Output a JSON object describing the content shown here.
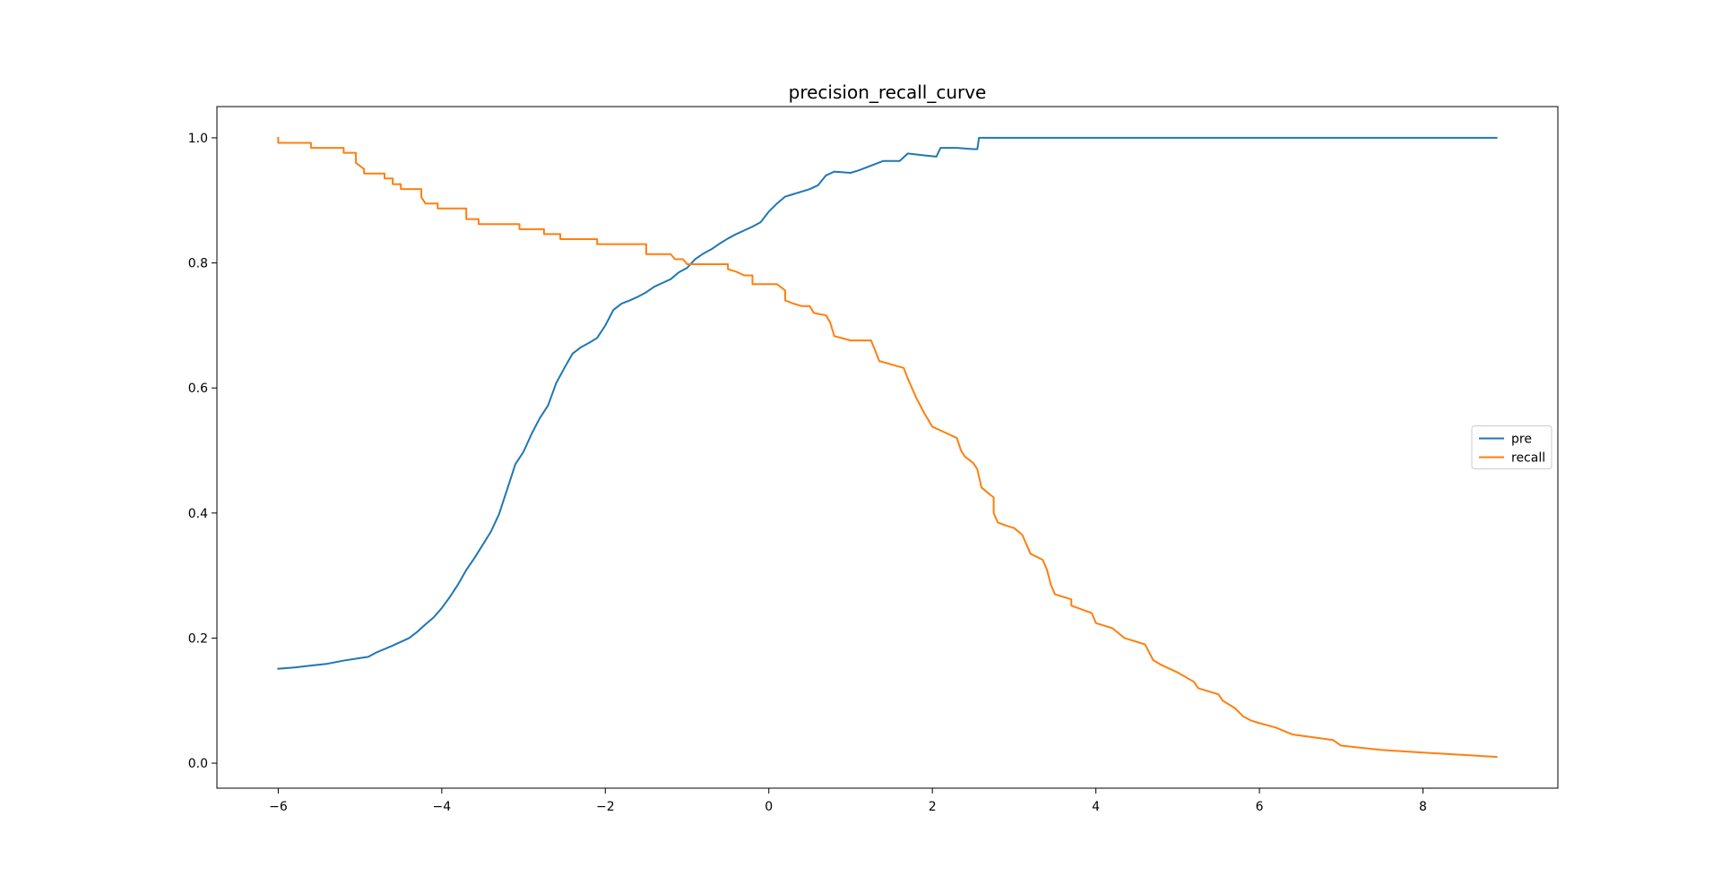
{
  "chart_data": {
    "type": "line",
    "title": "precision_recall_curve",
    "xlabel": "",
    "ylabel": "",
    "xlim": [
      -6.75,
      9.65
    ],
    "ylim": [
      -0.04,
      1.05
    ],
    "x_ticks": [
      -6,
      -4,
      -2,
      0,
      2,
      4,
      6,
      8
    ],
    "y_ticks": [
      0.0,
      0.2,
      0.4,
      0.6,
      0.8,
      1.0
    ],
    "x_tick_labels": [
      "−6",
      "−4",
      "−2",
      "0",
      "2",
      "4",
      "6",
      "8"
    ],
    "y_tick_labels": [
      "0.0",
      "0.2",
      "0.4",
      "0.6",
      "0.8",
      "1.0"
    ],
    "grid": false,
    "legend": {
      "position": "center-right"
    },
    "series": [
      {
        "name": "pre",
        "color": "#1f77b4",
        "points": [
          [
            -6.0,
            0.151
          ],
          [
            -5.8,
            0.153
          ],
          [
            -5.6,
            0.156
          ],
          [
            -5.4,
            0.159
          ],
          [
            -5.2,
            0.164
          ],
          [
            -5.0,
            0.168
          ],
          [
            -4.9,
            0.17
          ],
          [
            -4.8,
            0.177
          ],
          [
            -4.6,
            0.188
          ],
          [
            -4.4,
            0.2
          ],
          [
            -4.3,
            0.21
          ],
          [
            -4.2,
            0.222
          ],
          [
            -4.1,
            0.233
          ],
          [
            -4.0,
            0.248
          ],
          [
            -3.9,
            0.266
          ],
          [
            -3.8,
            0.286
          ],
          [
            -3.7,
            0.309
          ],
          [
            -3.6,
            0.328
          ],
          [
            -3.5,
            0.349
          ],
          [
            -3.4,
            0.37
          ],
          [
            -3.3,
            0.398
          ],
          [
            -3.2,
            0.438
          ],
          [
            -3.1,
            0.478
          ],
          [
            -3.0,
            0.498
          ],
          [
            -2.9,
            0.527
          ],
          [
            -2.8,
            0.552
          ],
          [
            -2.7,
            0.572
          ],
          [
            -2.6,
            0.608
          ],
          [
            -2.5,
            0.632
          ],
          [
            -2.4,
            0.655
          ],
          [
            -2.3,
            0.665
          ],
          [
            -2.2,
            0.672
          ],
          [
            -2.1,
            0.68
          ],
          [
            -2.0,
            0.7
          ],
          [
            -1.9,
            0.725
          ],
          [
            -1.8,
            0.735
          ],
          [
            -1.7,
            0.74
          ],
          [
            -1.6,
            0.746
          ],
          [
            -1.5,
            0.753
          ],
          [
            -1.4,
            0.762
          ],
          [
            -1.3,
            0.768
          ],
          [
            -1.2,
            0.774
          ],
          [
            -1.1,
            0.785
          ],
          [
            -1.0,
            0.792
          ],
          [
            -0.9,
            0.806
          ],
          [
            -0.8,
            0.815
          ],
          [
            -0.7,
            0.822
          ],
          [
            -0.6,
            0.831
          ],
          [
            -0.5,
            0.839
          ],
          [
            -0.4,
            0.846
          ],
          [
            -0.3,
            0.852
          ],
          [
            -0.2,
            0.858
          ],
          [
            -0.1,
            0.865
          ],
          [
            0.0,
            0.882
          ],
          [
            0.1,
            0.895
          ],
          [
            0.2,
            0.906
          ],
          [
            0.3,
            0.91
          ],
          [
            0.5,
            0.918
          ],
          [
            0.6,
            0.924
          ],
          [
            0.7,
            0.94
          ],
          [
            0.8,
            0.946
          ],
          [
            1.0,
            0.944
          ],
          [
            1.1,
            0.948
          ],
          [
            1.2,
            0.953
          ],
          [
            1.4,
            0.963
          ],
          [
            1.6,
            0.963
          ],
          [
            1.7,
            0.975
          ],
          [
            1.9,
            0.972
          ],
          [
            2.05,
            0.97
          ],
          [
            2.1,
            0.984
          ],
          [
            2.3,
            0.984
          ],
          [
            2.5,
            0.982
          ],
          [
            2.55,
            0.982
          ],
          [
            2.57,
            1.0
          ],
          [
            8.9,
            1.0
          ]
        ]
      },
      {
        "name": "recall",
        "color": "#ff7f0e",
        "points": [
          [
            -6.0,
            1.0
          ],
          [
            -6.0,
            0.992
          ],
          [
            -5.6,
            0.992
          ],
          [
            -5.6,
            0.984
          ],
          [
            -5.2,
            0.984
          ],
          [
            -5.2,
            0.976
          ],
          [
            -5.05,
            0.976
          ],
          [
            -5.05,
            0.96
          ],
          [
            -4.95,
            0.95
          ],
          [
            -4.95,
            0.943
          ],
          [
            -4.7,
            0.943
          ],
          [
            -4.7,
            0.935
          ],
          [
            -4.6,
            0.935
          ],
          [
            -4.6,
            0.926
          ],
          [
            -4.5,
            0.926
          ],
          [
            -4.5,
            0.918
          ],
          [
            -4.25,
            0.918
          ],
          [
            -4.25,
            0.905
          ],
          [
            -4.2,
            0.895
          ],
          [
            -4.05,
            0.895
          ],
          [
            -4.05,
            0.887
          ],
          [
            -3.7,
            0.887
          ],
          [
            -3.7,
            0.87
          ],
          [
            -3.55,
            0.87
          ],
          [
            -3.55,
            0.862
          ],
          [
            -3.05,
            0.862
          ],
          [
            -3.05,
            0.854
          ],
          [
            -2.75,
            0.854
          ],
          [
            -2.75,
            0.846
          ],
          [
            -2.55,
            0.846
          ],
          [
            -2.55,
            0.838
          ],
          [
            -2.1,
            0.838
          ],
          [
            -2.1,
            0.83
          ],
          [
            -1.5,
            0.83
          ],
          [
            -1.5,
            0.814
          ],
          [
            -1.2,
            0.814
          ],
          [
            -1.15,
            0.806
          ],
          [
            -1.05,
            0.806
          ],
          [
            -1.0,
            0.798
          ],
          [
            -0.5,
            0.798
          ],
          [
            -0.5,
            0.79
          ],
          [
            -0.4,
            0.786
          ],
          [
            -0.3,
            0.78
          ],
          [
            -0.2,
            0.78
          ],
          [
            -0.2,
            0.766
          ],
          [
            0.1,
            0.766
          ],
          [
            0.2,
            0.756
          ],
          [
            0.2,
            0.74
          ],
          [
            0.3,
            0.735
          ],
          [
            0.4,
            0.731
          ],
          [
            0.5,
            0.731
          ],
          [
            0.55,
            0.72
          ],
          [
            0.7,
            0.716
          ],
          [
            0.75,
            0.705
          ],
          [
            0.8,
            0.683
          ],
          [
            1.0,
            0.676
          ],
          [
            1.25,
            0.676
          ],
          [
            1.3,
            0.66
          ],
          [
            1.35,
            0.643
          ],
          [
            1.65,
            0.632
          ],
          [
            1.7,
            0.615
          ],
          [
            1.8,
            0.585
          ],
          [
            1.9,
            0.56
          ],
          [
            2.0,
            0.538
          ],
          [
            2.1,
            0.532
          ],
          [
            2.3,
            0.52
          ],
          [
            2.35,
            0.5
          ],
          [
            2.4,
            0.49
          ],
          [
            2.5,
            0.48
          ],
          [
            2.55,
            0.47
          ],
          [
            2.6,
            0.441
          ],
          [
            2.7,
            0.43
          ],
          [
            2.75,
            0.425
          ],
          [
            2.75,
            0.4
          ],
          [
            2.8,
            0.385
          ],
          [
            2.9,
            0.38
          ],
          [
            3.0,
            0.376
          ],
          [
            3.1,
            0.365
          ],
          [
            3.2,
            0.335
          ],
          [
            3.35,
            0.325
          ],
          [
            3.4,
            0.31
          ],
          [
            3.45,
            0.285
          ],
          [
            3.5,
            0.27
          ],
          [
            3.7,
            0.262
          ],
          [
            3.7,
            0.252
          ],
          [
            3.95,
            0.24
          ],
          [
            4.0,
            0.224
          ],
          [
            4.2,
            0.216
          ],
          [
            4.35,
            0.2
          ],
          [
            4.6,
            0.19
          ],
          [
            4.7,
            0.165
          ],
          [
            4.8,
            0.157
          ],
          [
            5.0,
            0.145
          ],
          [
            5.2,
            0.13
          ],
          [
            5.25,
            0.12
          ],
          [
            5.5,
            0.11
          ],
          [
            5.55,
            0.1
          ],
          [
            5.7,
            0.088
          ],
          [
            5.8,
            0.075
          ],
          [
            5.9,
            0.068
          ],
          [
            6.0,
            0.064
          ],
          [
            6.2,
            0.057
          ],
          [
            6.4,
            0.046
          ],
          [
            6.9,
            0.037
          ],
          [
            7.0,
            0.028
          ],
          [
            7.5,
            0.021
          ],
          [
            8.0,
            0.017
          ],
          [
            8.9,
            0.01
          ]
        ]
      }
    ]
  }
}
